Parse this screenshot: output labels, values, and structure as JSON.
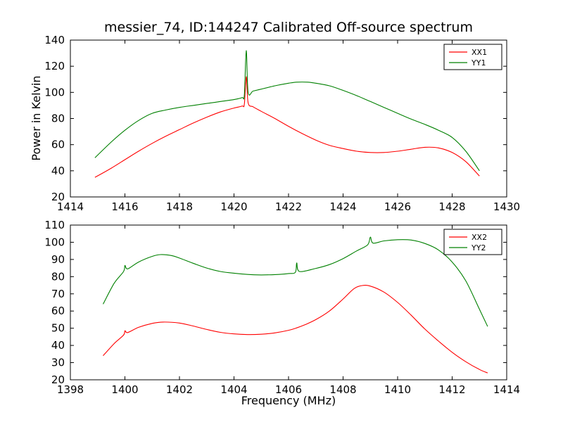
{
  "figure": {
    "title": "messier_74, ID:144247 Calibrated Off-source spectrum",
    "xlabel": "Frequency (MHz)",
    "ylabel": "Power in Kelvin",
    "background": "#ffffff",
    "axis_color": "#000000"
  },
  "chart_data": [
    {
      "type": "line",
      "title": "",
      "xlabel": "",
      "ylabel": "Power in Kelvin",
      "xlim": [
        1414,
        1430
      ],
      "ylim": [
        20,
        140
      ],
      "x_ticks": [
        1414,
        1416,
        1418,
        1420,
        1422,
        1424,
        1426,
        1428,
        1430
      ],
      "y_ticks": [
        20,
        40,
        60,
        80,
        100,
        120,
        140
      ],
      "grid": false,
      "legend_position": "upper right",
      "series": [
        {
          "name": "XX1",
          "color": "#ff0000",
          "x": [
            1414.9,
            1415.5,
            1416,
            1416.5,
            1417,
            1417.5,
            1418,
            1418.5,
            1419,
            1419.5,
            1420,
            1420.3,
            1420.38,
            1420.45,
            1420.52,
            1420.7,
            1421,
            1421.5,
            1422,
            1422.5,
            1423,
            1423.5,
            1424,
            1424.5,
            1425,
            1425.5,
            1426,
            1426.5,
            1427,
            1427.5,
            1428,
            1428.5,
            1429
          ],
          "y": [
            35,
            42,
            48.5,
            55,
            61,
            66.5,
            71.5,
            76.5,
            81,
            85,
            88,
            89.5,
            91,
            112,
            92,
            89,
            85.5,
            80,
            74,
            68.5,
            63.5,
            59.5,
            57,
            55,
            54,
            54,
            55,
            56.5,
            58,
            57.5,
            54,
            47,
            36
          ]
        },
        {
          "name": "YY1",
          "color": "#008000",
          "x": [
            1414.9,
            1415.5,
            1416,
            1416.5,
            1417,
            1417.5,
            1418,
            1418.5,
            1419,
            1419.5,
            1420,
            1420.3,
            1420.38,
            1420.45,
            1420.52,
            1420.7,
            1421,
            1421.5,
            1422,
            1422.3,
            1422.7,
            1423,
            1423.5,
            1424,
            1424.5,
            1425,
            1425.5,
            1426,
            1426.5,
            1427,
            1427.5,
            1428,
            1428.5,
            1429
          ],
          "y": [
            50,
            62,
            71,
            78.5,
            84,
            86.5,
            88.5,
            90,
            91.5,
            93,
            94.5,
            96,
            98,
            132,
            100,
            101,
            102.5,
            105,
            107,
            107.8,
            107.8,
            107,
            105,
            101.5,
            97.5,
            93,
            88.5,
            84,
            79.5,
            75.5,
            71,
            65.5,
            55,
            40
          ]
        }
      ]
    },
    {
      "type": "line",
      "title": "",
      "xlabel": "Frequency (MHz)",
      "ylabel": "",
      "xlim": [
        1398,
        1414
      ],
      "ylim": [
        20,
        110
      ],
      "x_ticks": [
        1398,
        1400,
        1402,
        1404,
        1406,
        1408,
        1410,
        1412,
        1414
      ],
      "y_ticks": [
        20,
        30,
        40,
        50,
        60,
        70,
        80,
        90,
        100,
        110
      ],
      "grid": false,
      "legend_position": "upper right",
      "series": [
        {
          "name": "XX2",
          "color": "#ff0000",
          "x": [
            1399.2,
            1399.6,
            1399.95,
            1400.0,
            1400.1,
            1400.5,
            1401,
            1401.4,
            1402,
            1402.5,
            1403,
            1403.5,
            1404,
            1404.5,
            1405,
            1405.5,
            1406,
            1406.3,
            1406.6,
            1407,
            1407.5,
            1408,
            1408.4,
            1408.7,
            1409,
            1409.5,
            1410,
            1410.5,
            1411,
            1411.5,
            1412,
            1412.5,
            1413,
            1413.3
          ],
          "y": [
            34,
            41,
            46,
            48.5,
            47.5,
            50.5,
            52.8,
            53.6,
            53,
            51.3,
            49.3,
            47.6,
            46.7,
            46.3,
            46.5,
            47.3,
            48.8,
            50.2,
            52,
            55,
            60,
            67,
            73,
            74.8,
            74.5,
            71,
            65,
            57.5,
            49.5,
            42.5,
            36,
            30.5,
            26,
            24
          ]
        },
        {
          "name": "YY2",
          "color": "#008000",
          "x": [
            1399.2,
            1399.6,
            1399.95,
            1400.0,
            1400.1,
            1400.5,
            1401,
            1401.3,
            1401.7,
            1402,
            1402.5,
            1403,
            1403.5,
            1404,
            1404.5,
            1405,
            1405.5,
            1406,
            1406.25,
            1406.3,
            1406.4,
            1407,
            1407.5,
            1408,
            1408.5,
            1408.9,
            1409.0,
            1409.1,
            1409.5,
            1410,
            1410.5,
            1411,
            1411.5,
            1412,
            1412.5,
            1413,
            1413.3
          ],
          "y": [
            64,
            76,
            83,
            86.5,
            84.5,
            88.5,
            91.8,
            92.8,
            92.3,
            90.8,
            87.8,
            85,
            83,
            82,
            81.3,
            81,
            81.2,
            81.8,
            82.5,
            88,
            83,
            84.8,
            87,
            90.5,
            95,
            98.5,
            103,
            99.5,
            100.8,
            101.5,
            101.3,
            99.3,
            95.5,
            88.5,
            77.5,
            61,
            51
          ]
        }
      ]
    }
  ]
}
